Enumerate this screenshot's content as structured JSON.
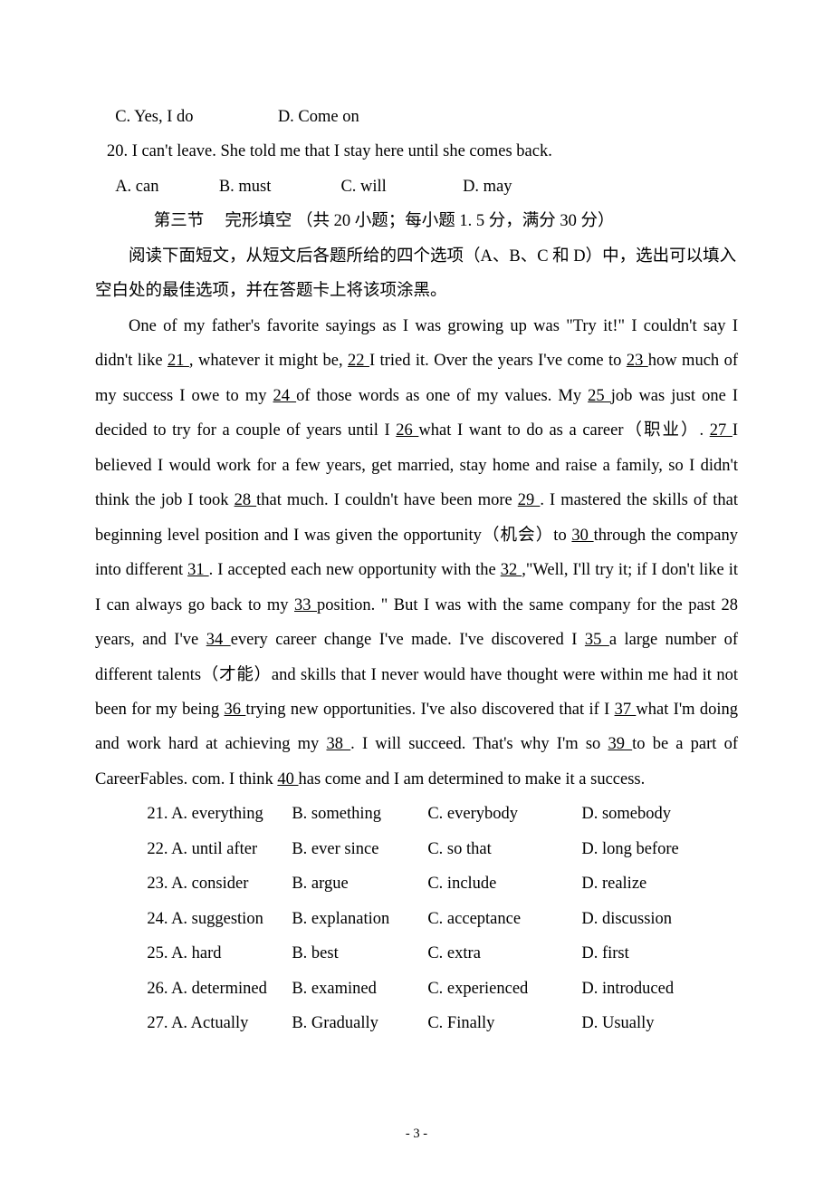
{
  "q19": {
    "c": "C. Yes, I do",
    "d": "D. Come on"
  },
  "q20": {
    "number": "20. ",
    "stem_pre": "I can't leave. She told me that I ",
    "blank": "          ",
    "stem_post": "  stay here until she comes back.",
    "a": "A. can",
    "b": "B. must",
    "c": "C. will",
    "d": "D. may"
  },
  "section": {
    "title": "第三节　  完形填空 （共 20 小题；每小题 1. 5 分，满分 30 分）",
    "instruction": "阅读下面短文，从短文后各题所给的四个选项（A、B、C 和 D）中，选出可以填入空白处的最佳选项，并在答题卡上将该项涂黑。"
  },
  "passage": {
    "p1a": "One of my father's favorite sayings as I was growing up was \"Try it!\" I couldn't say I didn't like ",
    "b21": "    21    ",
    "p1b": ", whatever it might be, ",
    "b22": "    22    ",
    "p1c": " I tried it. Over the years I've come to ",
    "b23": "    23 ",
    "p1d": "how much of my success I owe to my ",
    "b24": "    24     ",
    "p1e": " of those words as one of my values. My ",
    "b25": "    25 ",
    "p1f": "job was just one I decided to try for a couple of years until I ",
    "b26": "26    ",
    "p1g": " what I want to do as a career（职业）. ",
    "b27": "  27   ",
    "p1h": " I believed I would work for a few years, get married, stay home and raise a family, so I didn't think the job I took ",
    "b28": "28    ",
    "p1i": " that much. I couldn't have been more ",
    "b29": "    29    ",
    "p1j": ". I mastered the skills of that beginning level position and I was given the opportunity（机会）to ",
    "b30": "30    ",
    "p1k": "through the company into different ",
    "b31": "      31      ",
    "p1l": ". I accepted each new opportunity with the ",
    "b32": "32    ",
    "p1m": ",\"Well, I'll try it; if I don't like it I can always go back to my ",
    "b33": "    33    ",
    "p1n": " position. \" But I was with the same company for the past 28 years, and I've ",
    "b34": "    34     ",
    "p1o": " every career change I've made. I've discovered I ",
    "b35": "    35     ",
    "p1p": " a large number of different talents（才能）and skills that I never would have thought were within me had it not been for my being ",
    "b36": "    36       ",
    "p1q": " trying new opportunities. I've also discovered that if I ",
    "b37": "37     ",
    "p1r": " what I'm doing and work hard at achieving my ",
    "b38": "    38    ",
    "p1s": ". I will succeed. That's why I'm so ",
    "b39": "    39    ",
    "p1t": " to be a part of CareerFables. com. I think ",
    "b40": "     40     ",
    "p1u": " has come and I am determined to make it a success."
  },
  "options": [
    {
      "n": "21.",
      "a": "A. everything",
      "b": "B. something",
      "c": "C. everybody",
      "d": "D. somebody"
    },
    {
      "n": "22.",
      "a": "A. until after",
      "b": "B. ever since",
      "c": "C. so that",
      "d": "D. long before"
    },
    {
      "n": "23.",
      "a": "A. consider",
      "b": "B. argue",
      "c": "C. include",
      "d": "D. realize"
    },
    {
      "n": "24.",
      "a": "A. suggestion",
      "b": "B. explanation",
      "c": "C. acceptance",
      "d": "D. discussion"
    },
    {
      "n": "25.",
      "a": "A. hard",
      "b": "B. best",
      "c": "C. extra",
      "d": "D. first"
    },
    {
      "n": "26.",
      "a": "A. determined",
      "b": "B. examined",
      "c": "C. experienced",
      "d": "D. introduced"
    },
    {
      "n": "27.",
      "a": "A. Actually",
      "b": "B. Gradually",
      "c": "C. Finally",
      "d": "D. Usually"
    }
  ],
  "page_number": "- 3 -"
}
